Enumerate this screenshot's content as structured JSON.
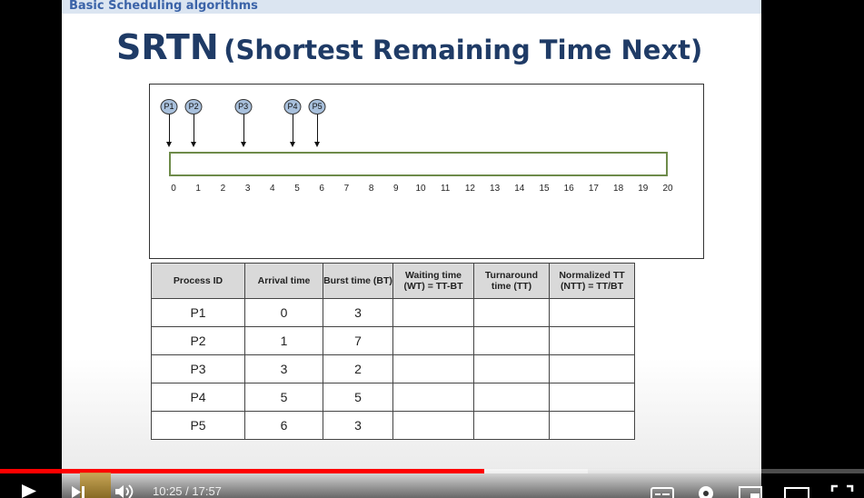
{
  "slide": {
    "header": "Basic Scheduling algorithms",
    "title_main": "SRTN",
    "title_sub": "(Shortest Remaining Time Next)"
  },
  "gantt": {
    "ticks": [
      "0",
      "1",
      "2",
      "3",
      "4",
      "5",
      "6",
      "7",
      "8",
      "9",
      "10",
      "11",
      "12",
      "13",
      "14",
      "15",
      "16",
      "17",
      "18",
      "19",
      "20"
    ],
    "processes": [
      {
        "label": "P1",
        "arrival": 0
      },
      {
        "label": "P2",
        "arrival": 1
      },
      {
        "label": "P3",
        "arrival": 3
      },
      {
        "label": "P4",
        "arrival": 5
      },
      {
        "label": "P5",
        "arrival": 6
      }
    ]
  },
  "table": {
    "headers": [
      "Process ID",
      "Arrival time",
      "Burst time (BT)",
      "Waiting time (WT) = TT-BT",
      "Turnaround time (TT)",
      "Normalized TT (NTT) = TT/BT"
    ],
    "rows": [
      [
        "P1",
        "0",
        "3",
        "",
        "",
        ""
      ],
      [
        "P2",
        "1",
        "7",
        "",
        "",
        ""
      ],
      [
        "P3",
        "3",
        "2",
        "",
        "",
        ""
      ],
      [
        "P4",
        "5",
        "5",
        "",
        "",
        ""
      ],
      [
        "P5",
        "6",
        "3",
        "",
        "",
        ""
      ]
    ]
  },
  "player": {
    "time_display": "10:25 / 17:57",
    "progress_fraction": 0.56,
    "buffered_fraction": 0.68,
    "play_icon": "play-icon",
    "next_icon": "next-icon",
    "volume_icon": "volume-icon",
    "captions_icon": "subtitles-icon",
    "settings_icon": "gear-icon",
    "miniplayer_icon": "miniplayer-icon",
    "theater_icon": "theater-icon",
    "fullscreen_icon": "fullscreen-icon",
    "accent_color": "#ff0000"
  }
}
